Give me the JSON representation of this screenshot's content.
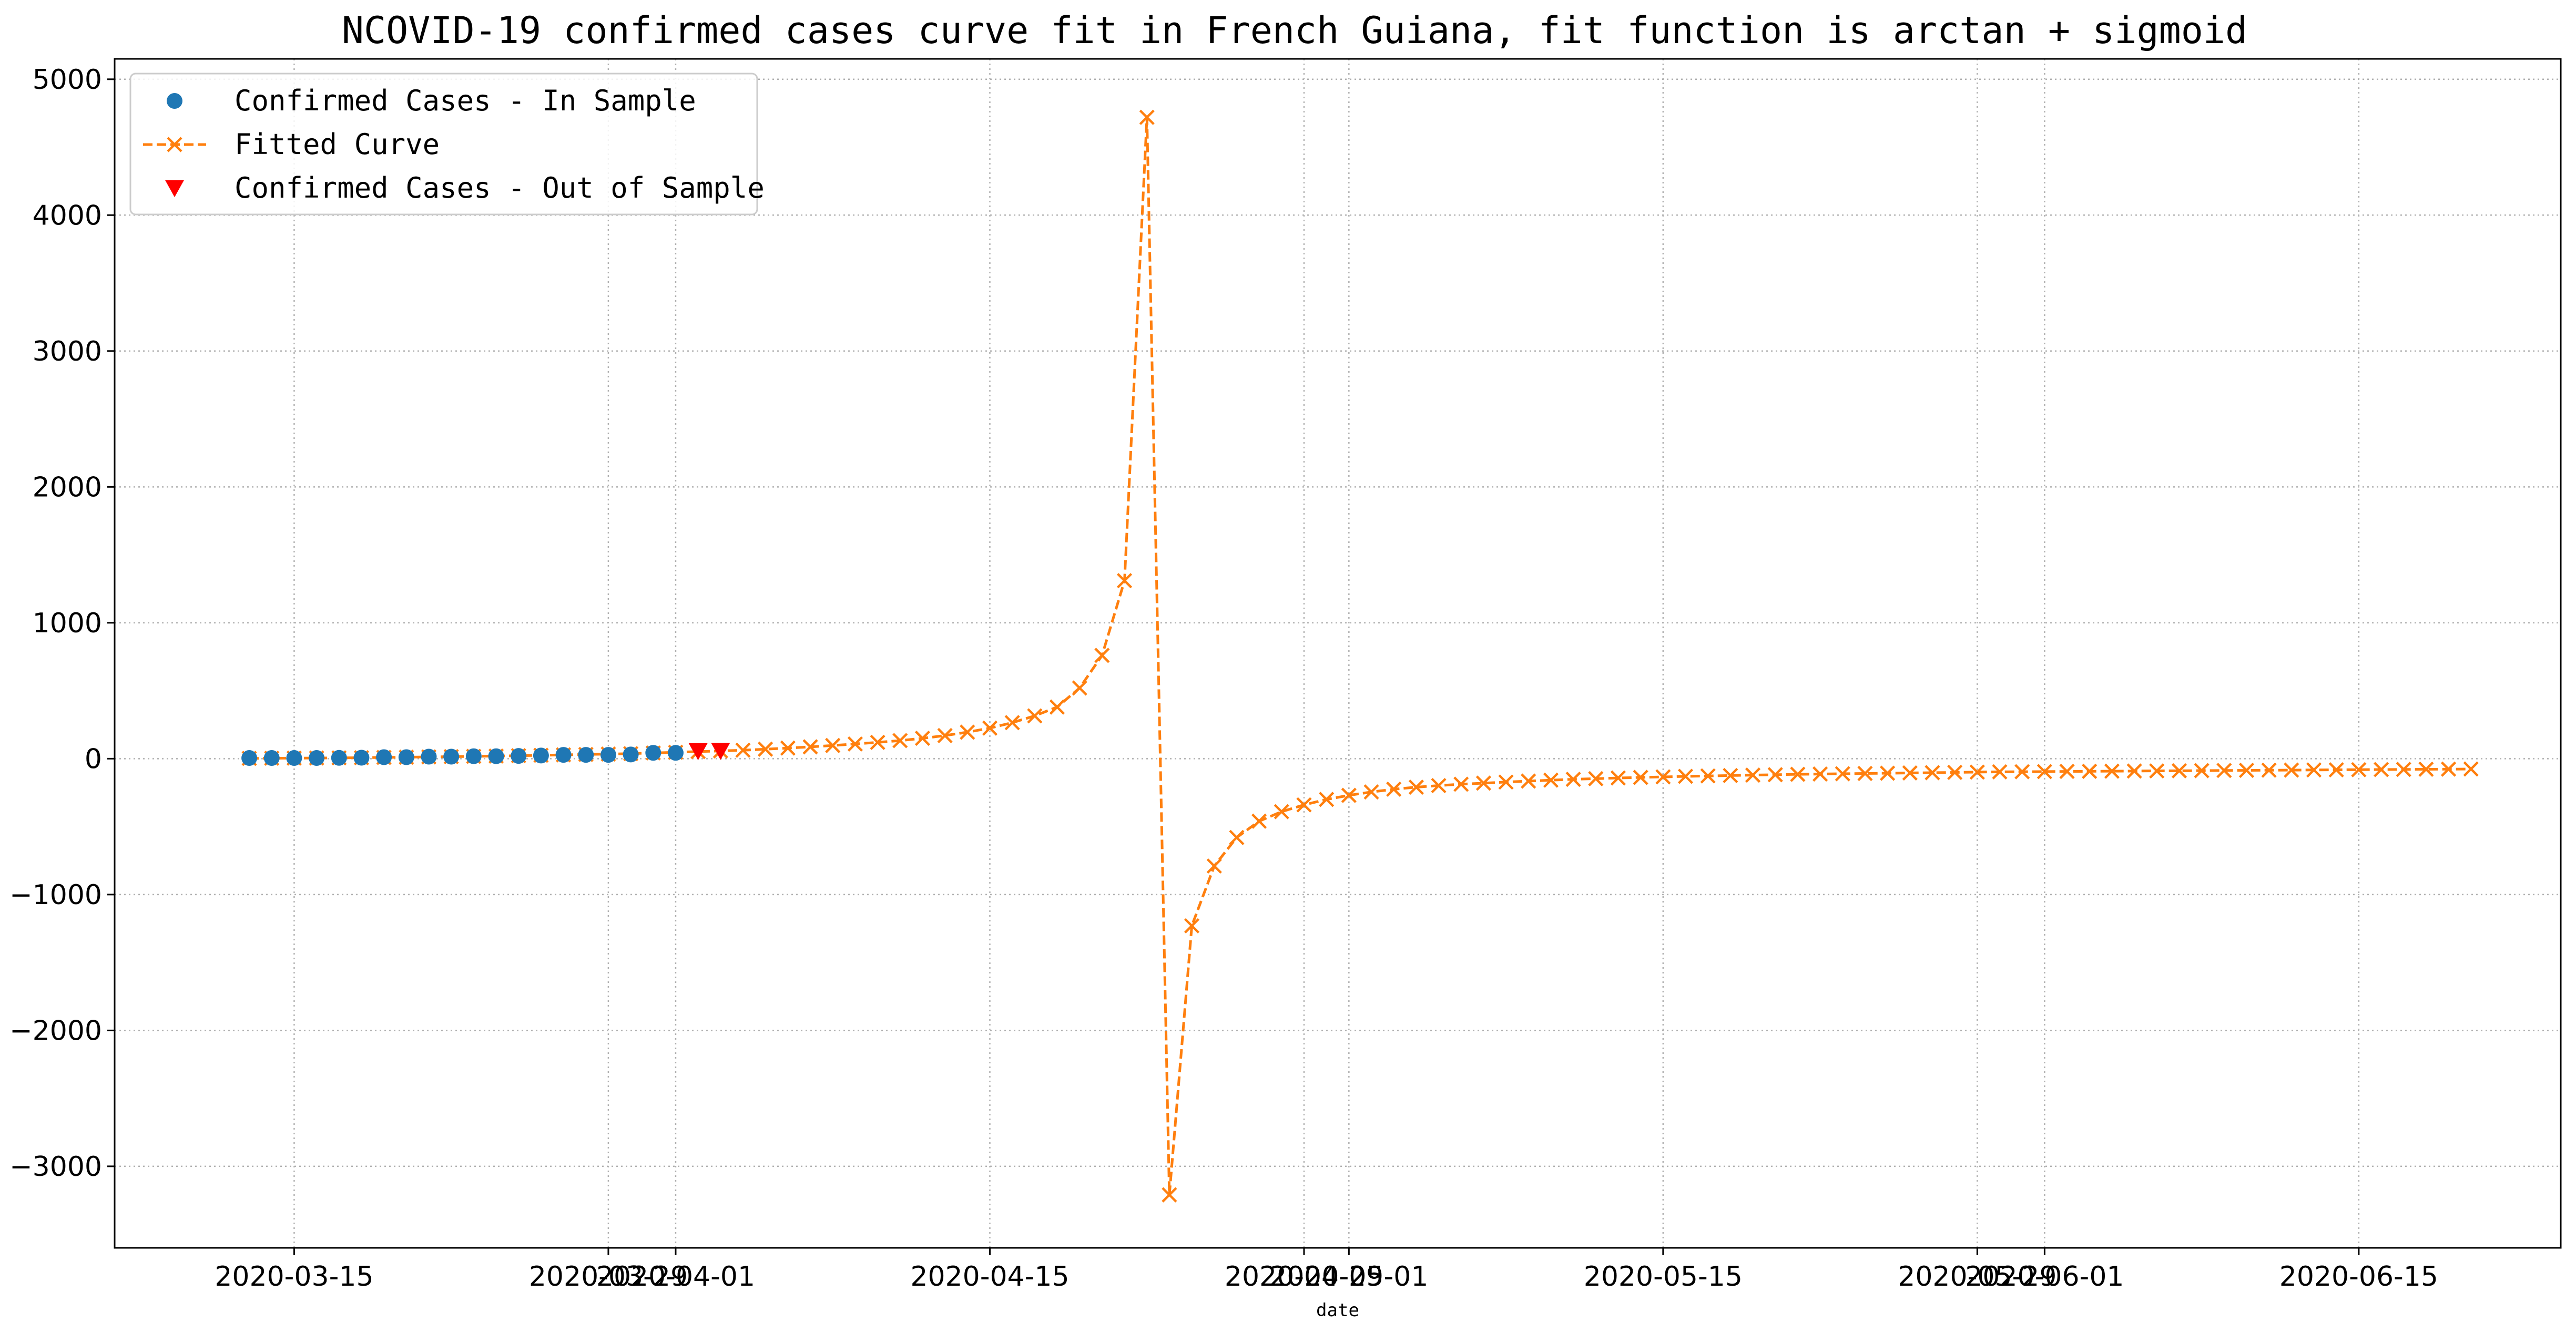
{
  "chart_data": {
    "type": "line",
    "title": "NCOVID-19 confirmed cases curve fit in French Guiana, fit function is arctan + sigmoid",
    "xlabel": "date",
    "ylabel": "",
    "x_range": [
      "2020-03-07",
      "2020-06-24"
    ],
    "ylim": [
      -3600,
      5150
    ],
    "grid": true,
    "legend_position": "top-left",
    "x_tick_labels": [
      "2020-03-15",
      "2020-03-29",
      "2020-04-01",
      "2020-04-15",
      "2020-04-29",
      "2020-05-01",
      "2020-05-15",
      "2020-05-29",
      "2020-06-01",
      "2020-06-15"
    ],
    "x_tick_dates": [
      "2020-03-15",
      "2020-03-29",
      "2020-04-01",
      "2020-04-15",
      "2020-04-29",
      "2020-05-01",
      "2020-05-15",
      "2020-05-29",
      "2020-06-01",
      "2020-06-15"
    ],
    "y_ticks": [
      -3000,
      -2000,
      -1000,
      0,
      1000,
      2000,
      3000,
      4000,
      5000
    ],
    "y_tick_labels": [
      "−3000",
      "−2000",
      "−1000",
      "0",
      "1000",
      "2000",
      "3000",
      "4000",
      "5000"
    ],
    "series": [
      {
        "name": "Confirmed Cases - In Sample",
        "marker": "circle",
        "color": "#1f77b4",
        "linestyle": "none",
        "x": [
          "2020-03-13",
          "2020-03-14",
          "2020-03-15",
          "2020-03-16",
          "2020-03-17",
          "2020-03-18",
          "2020-03-19",
          "2020-03-20",
          "2020-03-21",
          "2020-03-22",
          "2020-03-23",
          "2020-03-24",
          "2020-03-25",
          "2020-03-26",
          "2020-03-27",
          "2020-03-28",
          "2020-03-29",
          "2020-03-30",
          "2020-03-31",
          "2020-04-01"
        ],
        "y": [
          5,
          5,
          5,
          5,
          6,
          7,
          11,
          11,
          15,
          15,
          18,
          18,
          20,
          23,
          28,
          28,
          28,
          31,
          43,
          43
        ]
      },
      {
        "name": "Fitted Curve",
        "marker": "x",
        "color": "#ff7f0e",
        "linestyle": "dashed",
        "x": [
          "2020-03-13",
          "2020-03-14",
          "2020-03-15",
          "2020-03-16",
          "2020-03-17",
          "2020-03-18",
          "2020-03-19",
          "2020-03-20",
          "2020-03-21",
          "2020-03-22",
          "2020-03-23",
          "2020-03-24",
          "2020-03-25",
          "2020-03-26",
          "2020-03-27",
          "2020-03-28",
          "2020-03-29",
          "2020-03-30",
          "2020-03-31",
          "2020-04-01",
          "2020-04-02",
          "2020-04-03",
          "2020-04-04",
          "2020-04-05",
          "2020-04-06",
          "2020-04-07",
          "2020-04-08",
          "2020-04-09",
          "2020-04-10",
          "2020-04-11",
          "2020-04-12",
          "2020-04-13",
          "2020-04-14",
          "2020-04-15",
          "2020-04-16",
          "2020-04-17",
          "2020-04-18",
          "2020-04-19",
          "2020-04-20",
          "2020-04-21",
          "2020-04-22",
          "2020-04-23",
          "2020-04-24",
          "2020-04-25",
          "2020-04-26",
          "2020-04-27",
          "2020-04-28",
          "2020-04-29",
          "2020-04-30",
          "2020-05-01",
          "2020-05-02",
          "2020-05-03",
          "2020-05-04",
          "2020-05-05",
          "2020-05-06",
          "2020-05-07",
          "2020-05-08",
          "2020-05-09",
          "2020-05-10",
          "2020-05-11",
          "2020-05-12",
          "2020-05-13",
          "2020-05-14",
          "2020-05-15",
          "2020-05-16",
          "2020-05-17",
          "2020-05-18",
          "2020-05-19",
          "2020-05-20",
          "2020-05-21",
          "2020-05-22",
          "2020-05-23",
          "2020-05-24",
          "2020-05-25",
          "2020-05-26",
          "2020-05-27",
          "2020-05-28",
          "2020-05-29",
          "2020-05-30",
          "2020-05-31",
          "2020-06-01",
          "2020-06-02",
          "2020-06-03",
          "2020-06-04",
          "2020-06-05",
          "2020-06-06",
          "2020-06-07",
          "2020-06-08",
          "2020-06-09",
          "2020-06-10",
          "2020-06-11",
          "2020-06-12",
          "2020-06-13",
          "2020-06-14",
          "2020-06-15",
          "2020-06-16",
          "2020-06-17",
          "2020-06-18",
          "2020-06-19",
          "2020-06-20"
        ],
        "y": [
          2,
          3,
          4,
          5,
          6,
          7,
          9,
          11,
          13,
          15,
          17,
          19,
          22,
          25,
          28,
          31,
          34,
          37,
          42,
          47,
          52,
          57,
          62,
          70,
          78,
          87,
          97,
          108,
          120,
          133,
          150,
          170,
          195,
          225,
          265,
          315,
          380,
          520,
          760,
          1310,
          4720,
          -3210,
          -1230,
          -790,
          -580,
          -460,
          -390,
          -340,
          -300,
          -270,
          -245,
          -225,
          -210,
          -198,
          -188,
          -180,
          -172,
          -165,
          -158,
          -152,
          -147,
          -142,
          -138,
          -134,
          -130,
          -127,
          -124,
          -121,
          -118,
          -115,
          -113,
          -111,
          -109,
          -107,
          -105,
          -103,
          -101,
          -99,
          -97,
          -96,
          -95,
          -94,
          -93,
          -92,
          -91,
          -90,
          -89,
          -88,
          -87,
          -86,
          -85,
          -84,
          -83,
          -82,
          -81,
          -80,
          -79,
          -78,
          -77,
          -76
        ]
      },
      {
        "name": "Confirmed Cases - Out of Sample",
        "marker": "triangle-down",
        "color": "#ff0000",
        "linestyle": "none",
        "x": [
          "2020-04-02",
          "2020-04-03"
        ],
        "y": [
          55,
          57
        ]
      }
    ]
  }
}
